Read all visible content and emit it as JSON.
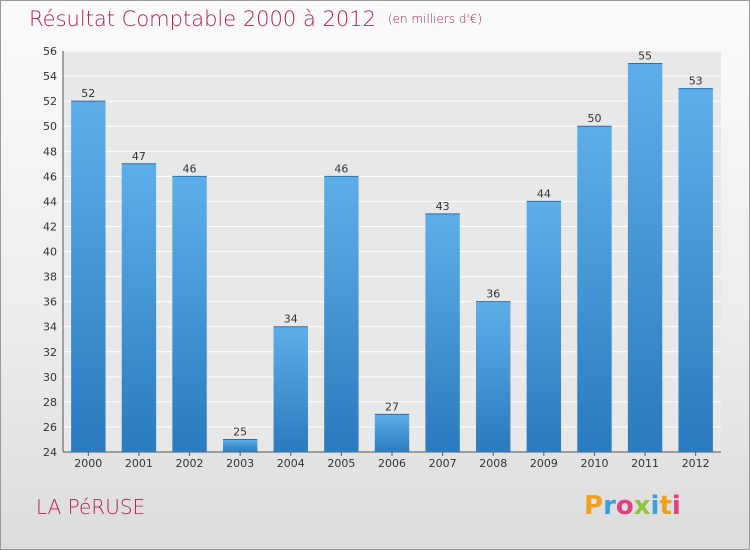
{
  "chart_data": {
    "type": "bar",
    "title": "Résultat Comptable 2000 à 2012",
    "subtitle": "(en milliers d'€)",
    "categories": [
      "2000",
      "2001",
      "2002",
      "2003",
      "2004",
      "2005",
      "2006",
      "2007",
      "2008",
      "2009",
      "2010",
      "2011",
      "2012"
    ],
    "values": [
      52,
      47,
      46,
      25,
      34,
      46,
      27,
      43,
      36,
      44,
      50,
      55,
      53
    ],
    "ylim": [
      24,
      56
    ],
    "yticks": [
      24,
      26,
      28,
      30,
      32,
      34,
      36,
      38,
      40,
      42,
      44,
      46,
      48,
      50,
      52,
      54,
      56
    ],
    "grid": true,
    "bar_color": "#3b8fd6",
    "grid_color": "#ffffff"
  },
  "place": "LA PéRUSE",
  "logo": {
    "letters": [
      "P",
      "r",
      "o",
      "x",
      "i",
      "t",
      "i"
    ],
    "colors": [
      "#f0a020",
      "#3aa1d8",
      "#e33e7f",
      "#8cc63f",
      "#3aa1d8",
      "#f0a020",
      "#e33e7f"
    ]
  }
}
